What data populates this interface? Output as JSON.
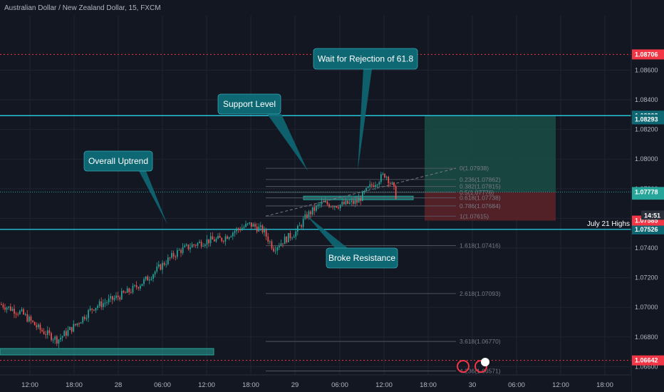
{
  "title": "Australian Dollar / New Zealand Dollar, 15, FXCM",
  "colors": {
    "background": "#131722",
    "up": "#26a69a",
    "down": "#ef5350",
    "teal_line": "#26c6da",
    "callout": "#0e6874",
    "red_line": "#f23645",
    "profit_zone": "#1b4d47",
    "loss_zone": "#5a2228"
  },
  "chart_data": {
    "type": "candlestick",
    "symbol": "AUDNZD",
    "interval": "15",
    "source": "FXCM",
    "ylim": [
      1.0656,
      1.0882
    ],
    "price_ticks": [
      "1.08600",
      "1.08400",
      "1.08200",
      "1.08000",
      "1.07800",
      "1.07600",
      "1.07400",
      "1.07200",
      "1.07000",
      "1.06800",
      "1.06600"
    ],
    "time_labels": [
      "12:00",
      "18:00",
      "28",
      "06:00",
      "12:00",
      "18:00",
      "29",
      "06:00",
      "12:00",
      "18:00",
      "30",
      "06:00",
      "12:00",
      "18:00"
    ],
    "anchors": [
      {
        "x": 0,
        "p": 1.0702
      },
      {
        "x": 30,
        "p": 1.0696
      },
      {
        "x": 55,
        "p": 1.0685
      },
      {
        "x": 80,
        "p": 1.0678
      },
      {
        "x": 105,
        "p": 1.0688
      },
      {
        "x": 130,
        "p": 1.07
      },
      {
        "x": 160,
        "p": 1.0706
      },
      {
        "x": 185,
        "p": 1.0712
      },
      {
        "x": 205,
        "p": 1.0719
      },
      {
        "x": 230,
        "p": 1.073
      },
      {
        "x": 250,
        "p": 1.0738
      },
      {
        "x": 270,
        "p": 1.0742
      },
      {
        "x": 290,
        "p": 1.0745
      },
      {
        "x": 310,
        "p": 1.0746
      },
      {
        "x": 330,
        "p": 1.0752
      },
      {
        "x": 350,
        "p": 1.0756
      },
      {
        "x": 368,
        "p": 1.0752
      },
      {
        "x": 383,
        "p": 1.074
      },
      {
        "x": 400,
        "p": 1.0746
      },
      {
        "x": 415,
        "p": 1.0751
      },
      {
        "x": 430,
        "p": 1.0762
      },
      {
        "x": 450,
        "p": 1.077
      },
      {
        "x": 475,
        "p": 1.0769
      },
      {
        "x": 500,
        "p": 1.0771
      },
      {
        "x": 520,
        "p": 1.0782
      },
      {
        "x": 540,
        "p": 1.079
      },
      {
        "x": 550,
        "p": 1.0782
      },
      {
        "x": 556,
        "p": 1.0774
      }
    ],
    "current_price": "1.07778",
    "countdown": "14:51",
    "horizontal_lines": [
      {
        "name": "resistance-top",
        "price": 1.08293,
        "label": "1.08293",
        "color": "#26c6da"
      },
      {
        "name": "july-21-highs",
        "price": 1.07526,
        "label": "1.07526",
        "color": "#26c6da",
        "text": "July 21 Highs"
      },
      {
        "name": "red-top",
        "price": 1.08706,
        "label": "1.08706",
        "color": "#f23645"
      },
      {
        "name": "red-bottom",
        "price": 1.06642,
        "label": "1.06642",
        "color": "#f23645"
      }
    ],
    "extra_tags": [
      {
        "label": "1.08293",
        "price": 1.08268,
        "bg": "#0e6874"
      },
      {
        "label": "1.07777",
        "price": 1.0776,
        "bg": "#26a69a"
      },
      {
        "label": "1.07585",
        "price": 1.07585,
        "bg": "#f23645"
      }
    ],
    "fibonacci": [
      {
        "label": "0(1.07938)",
        "price": 1.07938
      },
      {
        "label": "0.236(1.07862)",
        "price": 1.07862
      },
      {
        "label": "0.382(1.07815)",
        "price": 1.07815
      },
      {
        "label": "0.5(1.07776)",
        "price": 1.07776
      },
      {
        "label": "0.618(1.07738)",
        "price": 1.07738
      },
      {
        "label": "0.786(1.07684)",
        "price": 1.07684
      },
      {
        "label": "1(1.07615)",
        "price": 1.07615
      },
      {
        "label": "1.618(1.07416)",
        "price": 1.07416
      },
      {
        "label": "2.618(1.07093)",
        "price": 1.07093
      },
      {
        "label": "3.618(1.06770)",
        "price": 1.0677
      },
      {
        "label": "4.236(1.06571)",
        "price": 1.06571
      }
    ],
    "annotations": [
      {
        "name": "overall-uptrend",
        "text": "Overall Uptrend"
      },
      {
        "name": "support-level",
        "text": "Support Level"
      },
      {
        "name": "wait-rejection",
        "text": "Wait for Rejection of 61.8"
      },
      {
        "name": "broke-resistance",
        "text": "Broke Resistance"
      }
    ],
    "position": {
      "entry": 1.07778,
      "target": 1.08293,
      "stop": 1.07585
    },
    "event_badge": "2"
  }
}
